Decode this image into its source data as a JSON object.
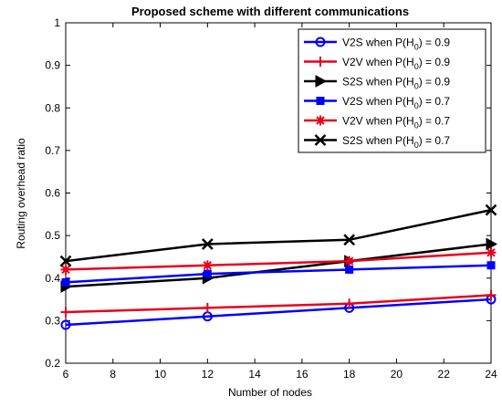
{
  "chart_data": {
    "type": "line",
    "title": "Proposed scheme with different communications",
    "xlabel": "Number of nodes",
    "ylabel": "Routing overhead ratio",
    "x": [
      6,
      12,
      18,
      24
    ],
    "xlim": [
      6,
      24
    ],
    "ylim": [
      0.2,
      1
    ],
    "xticks": [
      6,
      8,
      10,
      12,
      14,
      16,
      18,
      20,
      22,
      24
    ],
    "yticks": [
      0.2,
      0.3,
      0.4,
      0.5,
      0.6,
      0.7,
      0.8,
      0.9,
      1
    ],
    "grid": false,
    "legend_position": "top-right",
    "series": [
      {
        "name_prefix": "V2S when P(H",
        "name_suffix": ") = 0.9",
        "values": [
          0.29,
          0.31,
          0.33,
          0.35
        ],
        "color": "#0000ff",
        "marker": "circle"
      },
      {
        "name_prefix": "V2V when P(H",
        "name_suffix": ") = 0.9",
        "values": [
          0.32,
          0.33,
          0.34,
          0.36
        ],
        "color": "#e8001c",
        "marker": "plus"
      },
      {
        "name_prefix": "S2S when P(H",
        "name_suffix": ") = 0.9",
        "values": [
          0.38,
          0.4,
          0.44,
          0.48
        ],
        "color": "#000000",
        "marker": "triangle-right"
      },
      {
        "name_prefix": "V2S when P(H",
        "name_suffix": ") = 0.7",
        "values": [
          0.39,
          0.41,
          0.42,
          0.43
        ],
        "color": "#0000ff",
        "marker": "square"
      },
      {
        "name_prefix": "V2V when P(H",
        "name_suffix": ") = 0.7",
        "values": [
          0.42,
          0.43,
          0.44,
          0.46
        ],
        "color": "#e8001c",
        "marker": "asterisk"
      },
      {
        "name_prefix": "S2S when P(H",
        "name_suffix": ") = 0.7",
        "values": [
          0.44,
          0.48,
          0.49,
          0.56
        ],
        "color": "#000000",
        "marker": "x"
      }
    ],
    "subscript": "0"
  }
}
